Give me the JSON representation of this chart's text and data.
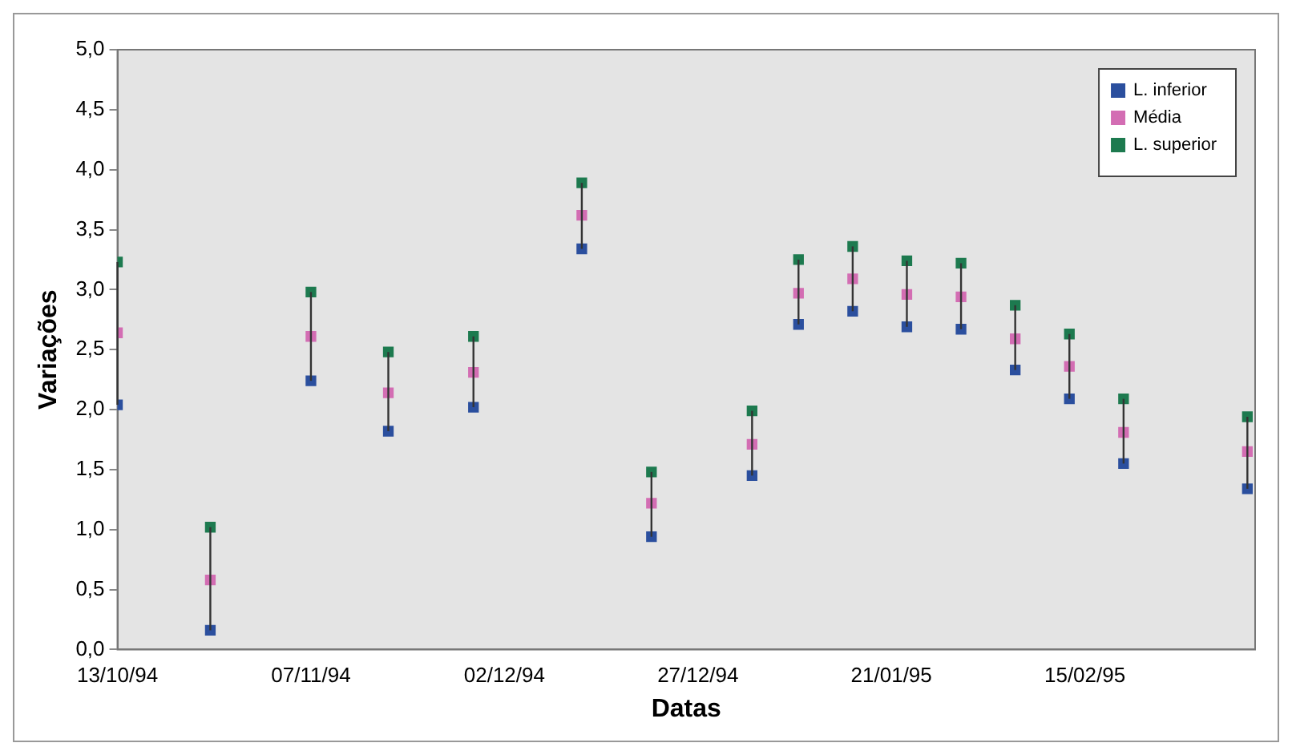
{
  "chart_data": {
    "type": "scatter",
    "xlabel": "Datas",
    "ylabel": "Variações",
    "x": [
      "1994-10-13",
      "1994-10-25",
      "1994-11-07",
      "1994-11-17",
      "1994-11-28",
      "1994-12-12",
      "1994-12-21",
      "1995-01-03",
      "1995-01-09",
      "1995-01-16",
      "1995-01-23",
      "1995-01-30",
      "1995-02-06",
      "1995-02-13",
      "1995-02-20",
      "1995-03-08"
    ],
    "series": [
      {
        "name": "L. inferior",
        "color": "#2b4f9e",
        "values": [
          2.04,
          0.16,
          2.24,
          1.82,
          2.02,
          3.34,
          0.94,
          1.45,
          2.71,
          2.82,
          2.69,
          2.67,
          2.33,
          2.09,
          1.55,
          1.34
        ]
      },
      {
        "name": "Média",
        "color": "#d36db3",
        "values": [
          2.64,
          0.58,
          2.61,
          2.14,
          2.31,
          3.62,
          1.22,
          1.71,
          2.97,
          3.09,
          2.96,
          2.94,
          2.59,
          2.36,
          1.81,
          1.65
        ],
        "errors": [
          [
            2.04,
            3.23
          ],
          [
            0.16,
            1.02
          ],
          [
            2.24,
            2.98
          ],
          [
            1.82,
            2.48
          ],
          [
            2.02,
            2.61
          ],
          [
            3.34,
            3.89
          ],
          [
            0.94,
            1.48
          ],
          [
            1.45,
            1.99
          ],
          [
            2.71,
            3.25
          ],
          [
            2.82,
            3.36
          ],
          [
            2.69,
            3.24
          ],
          [
            2.67,
            3.22
          ],
          [
            2.33,
            2.87
          ],
          [
            2.09,
            2.63
          ],
          [
            1.55,
            2.09
          ],
          [
            1.34,
            1.94
          ]
        ]
      },
      {
        "name": "L. superior",
        "color": "#1d7a4f",
        "values": [
          3.23,
          1.02,
          2.98,
          2.48,
          2.61,
          3.89,
          1.48,
          1.99,
          3.25,
          3.36,
          3.24,
          3.22,
          2.87,
          2.63,
          2.09,
          1.94
        ]
      }
    ],
    "xlim": [
      "1994-10-13",
      "1995-03-09"
    ],
    "xticks": [
      {
        "value": "1994-10-13",
        "label": "13/10/94"
      },
      {
        "value": "1994-11-07",
        "label": "07/11/94"
      },
      {
        "value": "1994-12-02",
        "label": "02/12/94"
      },
      {
        "value": "1994-12-27",
        "label": "27/12/94"
      },
      {
        "value": "1995-01-21",
        "label": "21/01/95"
      },
      {
        "value": "1995-02-15",
        "label": "15/02/95"
      }
    ],
    "ylim": [
      0,
      5
    ],
    "yticks": [
      {
        "value": 0,
        "label": "0,0"
      },
      {
        "value": 0.5,
        "label": "0,5"
      },
      {
        "value": 1,
        "label": "1,0"
      },
      {
        "value": 1.5,
        "label": "1,5"
      },
      {
        "value": 2,
        "label": "2,0"
      },
      {
        "value": 2.5,
        "label": "2,5"
      },
      {
        "value": 3,
        "label": "3,0"
      },
      {
        "value": 3.5,
        "label": "3,5"
      },
      {
        "value": 4,
        "label": "4,0"
      },
      {
        "value": 4.5,
        "label": "4,5"
      },
      {
        "value": 5,
        "label": "5,0"
      }
    ],
    "grid": false,
    "legend": "top right",
    "marker": "square"
  }
}
